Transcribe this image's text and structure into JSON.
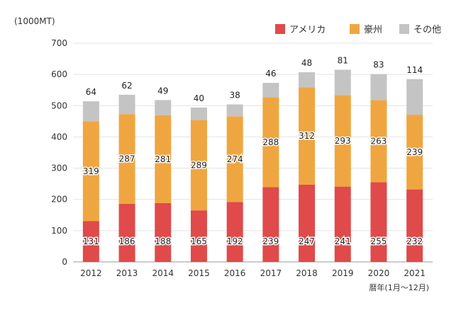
{
  "chart_data": {
    "type": "bar",
    "stacked": true,
    "unit_label": "(1000MT)",
    "xlabel": "暦年(1月〜12月)",
    "categories": [
      "2012",
      "2013",
      "2014",
      "2015",
      "2016",
      "2017",
      "2018",
      "2019",
      "2020",
      "2021"
    ],
    "series": [
      {
        "name": "アメリカ",
        "color": "#e04a4a",
        "values": [
          131,
          186,
          188,
          165,
          192,
          239,
          247,
          241,
          255,
          232
        ]
      },
      {
        "name": "豪州",
        "color": "#f0a640",
        "values": [
          319,
          287,
          281,
          289,
          274,
          288,
          312,
          293,
          263,
          239
        ]
      },
      {
        "name": "その他",
        "color": "#c4c4c4",
        "values": [
          64,
          62,
          49,
          40,
          38,
          46,
          48,
          81,
          83,
          114
        ]
      }
    ],
    "ylim": [
      0,
      700
    ],
    "yticks": [
      0,
      100,
      200,
      300,
      400,
      500,
      600,
      700
    ],
    "grid": true,
    "legend_position": "top-right"
  }
}
